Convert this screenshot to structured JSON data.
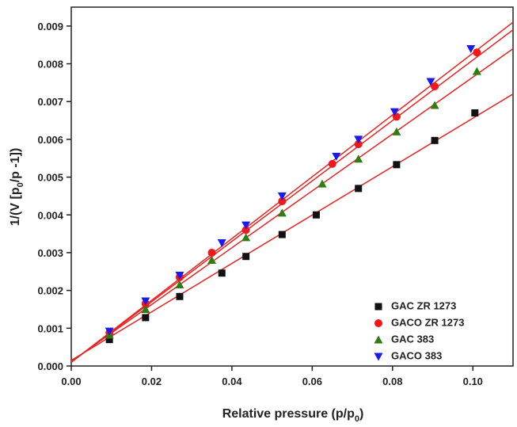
{
  "chart_data": {
    "type": "scatter",
    "xlabel_parts": [
      "Relative pressure (p/p",
      "0",
      ")"
    ],
    "ylabel_parts": [
      "1/(V [p",
      "0",
      "/p -1])"
    ],
    "xlim": [
      0,
      0.11
    ],
    "ylim": [
      0,
      0.0095
    ],
    "xticks": [
      {
        "value": 0,
        "label": "0.00"
      },
      {
        "value": 0.02,
        "label": "0.02"
      },
      {
        "value": 0.04,
        "label": "0.04"
      },
      {
        "value": 0.06,
        "label": "0.06"
      },
      {
        "value": 0.08,
        "label": "0.08"
      },
      {
        "value": 0.1,
        "label": "0.10"
      }
    ],
    "yticks": [
      {
        "value": 0,
        "label": "0.000"
      },
      {
        "value": 0.001,
        "label": "0.001"
      },
      {
        "value": 0.002,
        "label": "0.002"
      },
      {
        "value": 0.003,
        "label": "0.003"
      },
      {
        "value": 0.004,
        "label": "0.004"
      },
      {
        "value": 0.005,
        "label": "0.005"
      },
      {
        "value": 0.006,
        "label": "0.006"
      },
      {
        "value": 0.007,
        "label": "0.007"
      },
      {
        "value": 0.008,
        "label": "0.008"
      },
      {
        "value": 0.009,
        "label": "0.009"
      }
    ],
    "legend": "lower right",
    "series": [
      {
        "name": "GAC ZR 1273",
        "color": "#111111",
        "marker": "square",
        "x": [
          0.0095,
          0.0185,
          0.027,
          0.0375,
          0.0435,
          0.0525,
          0.061,
          0.0715,
          0.081,
          0.0905,
          0.1005
        ],
        "values": [
          0.0007,
          0.00128,
          0.00184,
          0.00246,
          0.0029,
          0.00348,
          0.004,
          0.0047,
          0.00533,
          0.00597,
          0.0067
        ],
        "fit": {
          "color": "#e8231f",
          "x": [
            0,
            0.11
          ],
          "values": [
            0.00015,
            0.0072
          ]
        }
      },
      {
        "name": "GACO ZR 1273",
        "color": "#f01818",
        "marker": "circle",
        "x": [
          0.0095,
          0.0185,
          0.027,
          0.035,
          0.0435,
          0.0525,
          0.065,
          0.0715,
          0.081,
          0.0905,
          0.101
        ],
        "values": [
          0.00088,
          0.00165,
          0.00235,
          0.003,
          0.0036,
          0.00436,
          0.00535,
          0.00587,
          0.0066,
          0.0074,
          0.0083
        ],
        "fit": {
          "color": "#e8231f",
          "x": [
            0,
            0.11
          ],
          "values": [
            0.0001,
            0.0089
          ]
        }
      },
      {
        "name": "GAC 383",
        "color": "#2e7d12",
        "marker": "triangle-up",
        "x": [
          0.0095,
          0.0185,
          0.027,
          0.035,
          0.0435,
          0.0525,
          0.0625,
          0.0715,
          0.081,
          0.0905,
          0.101
        ],
        "values": [
          0.00082,
          0.0015,
          0.00215,
          0.0028,
          0.0034,
          0.00405,
          0.00482,
          0.00548,
          0.0062,
          0.0069,
          0.0078
        ],
        "fit": {
          "color": "#e8231f",
          "x": [
            0,
            0.11
          ],
          "values": [
            0.00012,
            0.0084
          ]
        }
      },
      {
        "name": "GACO 383",
        "color": "#1a1aee",
        "marker": "triangle-down",
        "x": [
          0.0095,
          0.0185,
          0.027,
          0.0375,
          0.0435,
          0.0525,
          0.066,
          0.0715,
          0.0805,
          0.0895,
          0.0995
        ],
        "values": [
          0.00092,
          0.00172,
          0.0024,
          0.00326,
          0.00373,
          0.0045,
          0.00555,
          0.006,
          0.00673,
          0.00753,
          0.0084
        ],
        "fit": {
          "color": "#e8231f",
          "x": [
            0,
            0.11
          ],
          "values": [
            0.0001,
            0.0091
          ]
        }
      }
    ]
  }
}
